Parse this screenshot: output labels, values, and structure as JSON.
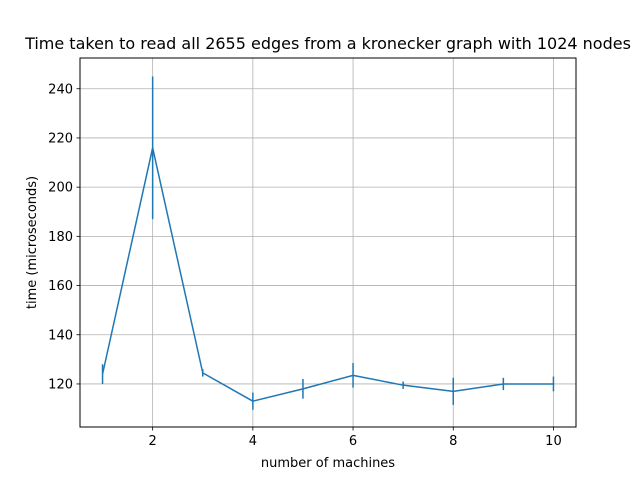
{
  "chart_data": {
    "type": "line",
    "title": "Time taken to read all 2655 edges from a kronecker graph with 1024 nodes",
    "xlabel": "number of machines",
    "ylabel": "time (microseconds)",
    "xlim": [
      0.55,
      10.45
    ],
    "ylim": [
      102.5,
      252.5
    ],
    "xticks": [
      2,
      4,
      6,
      8,
      10
    ],
    "yticks": [
      120,
      140,
      160,
      180,
      200,
      220,
      240
    ],
    "grid": true,
    "line_color": "#1f77b4",
    "series": [
      {
        "x": [
          1,
          2,
          3,
          4,
          5,
          6,
          7,
          8,
          9,
          10
        ],
        "y": [
          124,
          216,
          124.5,
          113,
          118,
          123.5,
          119.5,
          117,
          120,
          120
        ],
        "yerr": [
          4,
          29,
          1.5,
          3.5,
          4,
          5,
          1.5,
          5.5,
          2.5,
          3
        ]
      }
    ]
  }
}
